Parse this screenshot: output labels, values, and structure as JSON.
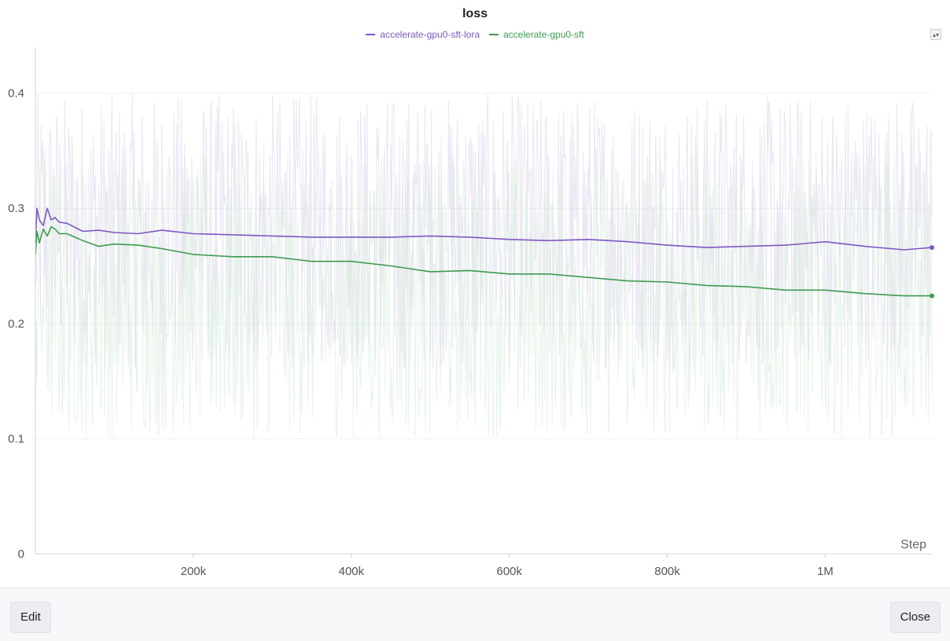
{
  "chart_data": {
    "type": "line",
    "title": "loss",
    "xlabel": "Step",
    "ylabel": "",
    "xlim": [
      0,
      1135000
    ],
    "ylim": [
      0,
      0.44
    ],
    "x_ticks": [
      200000,
      400000,
      600000,
      800000,
      1000000
    ],
    "x_tick_labels": [
      "200k",
      "400k",
      "600k",
      "800k",
      "1M"
    ],
    "y_ticks": [
      0,
      0.1,
      0.2,
      0.3,
      0.4
    ],
    "y_tick_labels": [
      "0",
      "0.1",
      "0.2",
      "0.3",
      "0.4"
    ],
    "grid": true,
    "legend_position": "top-center",
    "series": [
      {
        "name": "accelerate-gpu0-sft-lora",
        "color": "#7e57c2",
        "raw_color": "#d9d2ea",
        "raw_min": 0.16,
        "raw_max": 0.4,
        "x": [
          0,
          2000,
          5000,
          10000,
          15000,
          20000,
          25000,
          30000,
          40000,
          60000,
          80000,
          100000,
          130000,
          160000,
          200000,
          250000,
          300000,
          350000,
          400000,
          450000,
          500000,
          550000,
          600000,
          650000,
          700000,
          750000,
          800000,
          850000,
          900000,
          950000,
          1000000,
          1050000,
          1100000,
          1135000
        ],
        "y": [
          0.27,
          0.3,
          0.29,
          0.285,
          0.3,
          0.29,
          0.292,
          0.288,
          0.287,
          0.28,
          0.281,
          0.279,
          0.278,
          0.281,
          0.278,
          0.277,
          0.276,
          0.275,
          0.275,
          0.275,
          0.276,
          0.275,
          0.273,
          0.272,
          0.273,
          0.271,
          0.268,
          0.266,
          0.267,
          0.268,
          0.271,
          0.267,
          0.264,
          0.266
        ]
      },
      {
        "name": "accelerate-gpu0-sft",
        "color": "#3d9a50",
        "raw_color": "#d3ead8",
        "raw_min": 0.1,
        "raw_max": 0.35,
        "x": [
          0,
          2000,
          5000,
          10000,
          15000,
          20000,
          25000,
          30000,
          40000,
          60000,
          80000,
          100000,
          130000,
          160000,
          200000,
          250000,
          300000,
          350000,
          400000,
          450000,
          500000,
          550000,
          600000,
          650000,
          700000,
          750000,
          800000,
          850000,
          900000,
          950000,
          1000000,
          1050000,
          1100000,
          1135000
        ],
        "y": [
          0.26,
          0.28,
          0.27,
          0.282,
          0.276,
          0.284,
          0.282,
          0.278,
          0.278,
          0.272,
          0.267,
          0.269,
          0.268,
          0.265,
          0.26,
          0.258,
          0.258,
          0.254,
          0.254,
          0.25,
          0.245,
          0.246,
          0.243,
          0.243,
          0.24,
          0.237,
          0.236,
          0.233,
          0.232,
          0.229,
          0.229,
          0.226,
          0.224,
          0.224
        ]
      }
    ]
  },
  "footer": {
    "edit_label": "Edit",
    "close_label": "Close"
  }
}
